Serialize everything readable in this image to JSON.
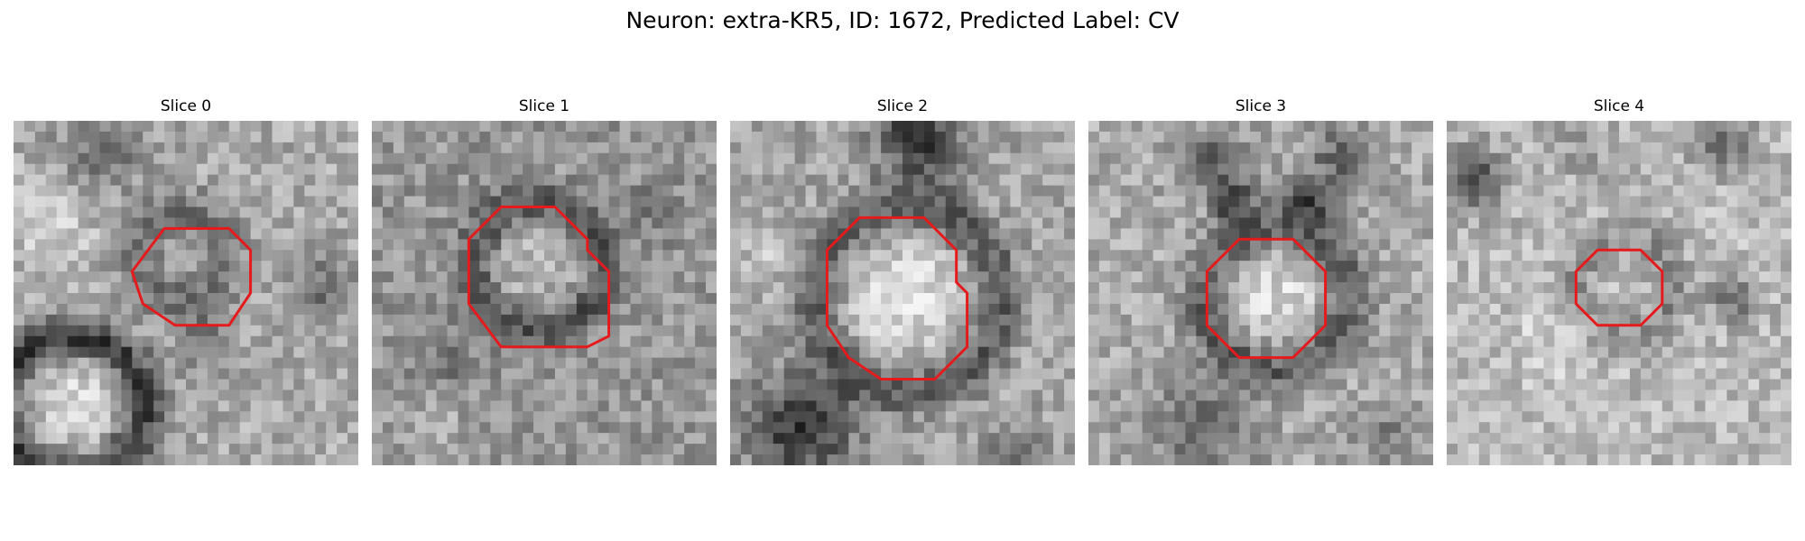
{
  "figure": {
    "title": "Neuron: extra-KR5, ID: 1672, Predicted Label: CV"
  },
  "panels": [
    {
      "title": "Slice 0"
    },
    {
      "title": "Slice 1"
    },
    {
      "title": "Slice 2"
    },
    {
      "title": "Slice 3"
    },
    {
      "title": "Slice 4"
    }
  ],
  "colors": {
    "outline": "#e41a1c",
    "background": "#ffffff"
  }
}
